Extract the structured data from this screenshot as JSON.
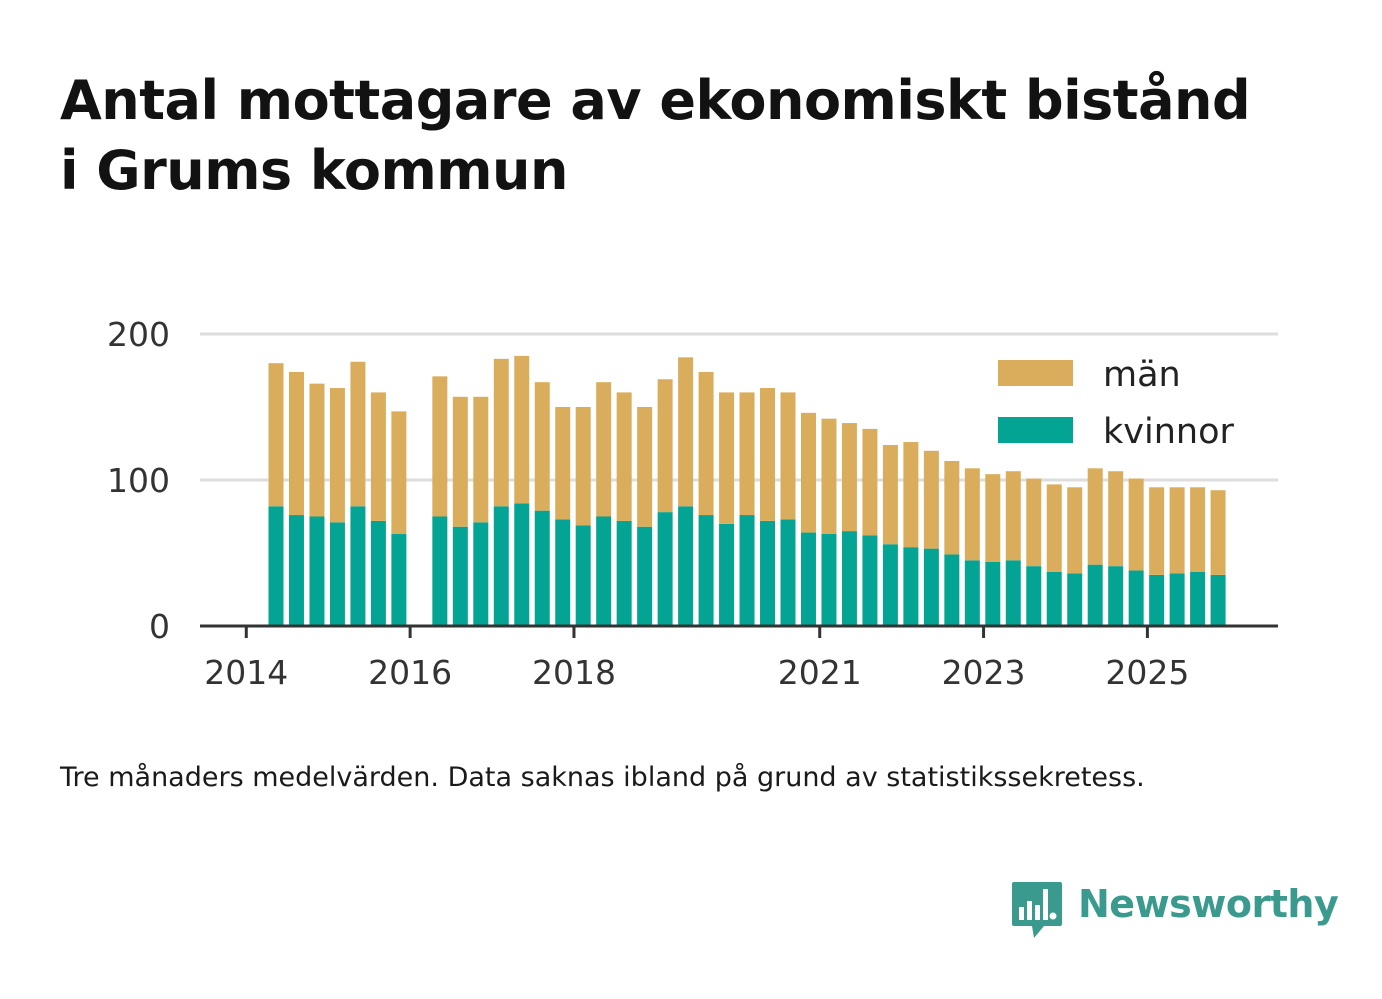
{
  "title": {
    "line1": "Antal mottagare av ekonomiskt bistånd",
    "line2": "i Grums kommun"
  },
  "note": "Tre månaders medelvärden. Data saknas ibland på grund av statistikssekretess.",
  "brand": {
    "name": "Newsworthy",
    "logo_icon": "chart-speech-bubble-icon"
  },
  "colors": {
    "men": "#d9ad5c",
    "women": "#04a494",
    "grid": "#dddddd",
    "axis": "#333333",
    "brand": "#3a9a8e"
  },
  "chart_data": {
    "type": "bar",
    "stacked": true,
    "title": "Antal mottagare av ekonomiskt bistånd i Grums kommun",
    "xlabel": "",
    "ylabel": "",
    "ylim": [
      0,
      200
    ],
    "yticks": [
      0,
      100,
      200
    ],
    "xticks": [
      {
        "label": "2014",
        "index": -1
      },
      {
        "label": "2016",
        "index": 7
      },
      {
        "label": "2018",
        "index": 15
      },
      {
        "label": "2021",
        "index": 27
      },
      {
        "label": "2023",
        "index": 35
      },
      {
        "label": "2025",
        "index": 43
      }
    ],
    "legend": {
      "position": "top-right",
      "entries": [
        "män",
        "kvinnor"
      ]
    },
    "series": [
      {
        "name": "kvinnor",
        "values": [
          82,
          76,
          75,
          71,
          82,
          72,
          63,
          null,
          75,
          68,
          71,
          82,
          84,
          79,
          73,
          69,
          75,
          72,
          68,
          78,
          82,
          76,
          70,
          76,
          72,
          73,
          64,
          63,
          65,
          62,
          56,
          54,
          53,
          49,
          45,
          44,
          45,
          41,
          37,
          36,
          42,
          41,
          38,
          35,
          36,
          37,
          35
        ]
      },
      {
        "name": "män",
        "values": [
          98,
          98,
          91,
          92,
          99,
          88,
          84,
          null,
          96,
          89,
          86,
          101,
          101,
          88,
          77,
          81,
          92,
          88,
          82,
          91,
          102,
          98,
          90,
          84,
          91,
          87,
          82,
          79,
          74,
          73,
          68,
          72,
          67,
          64,
          63,
          60,
          61,
          60,
          60,
          59,
          66,
          65,
          63,
          60,
          59,
          58,
          58
        ]
      }
    ]
  }
}
